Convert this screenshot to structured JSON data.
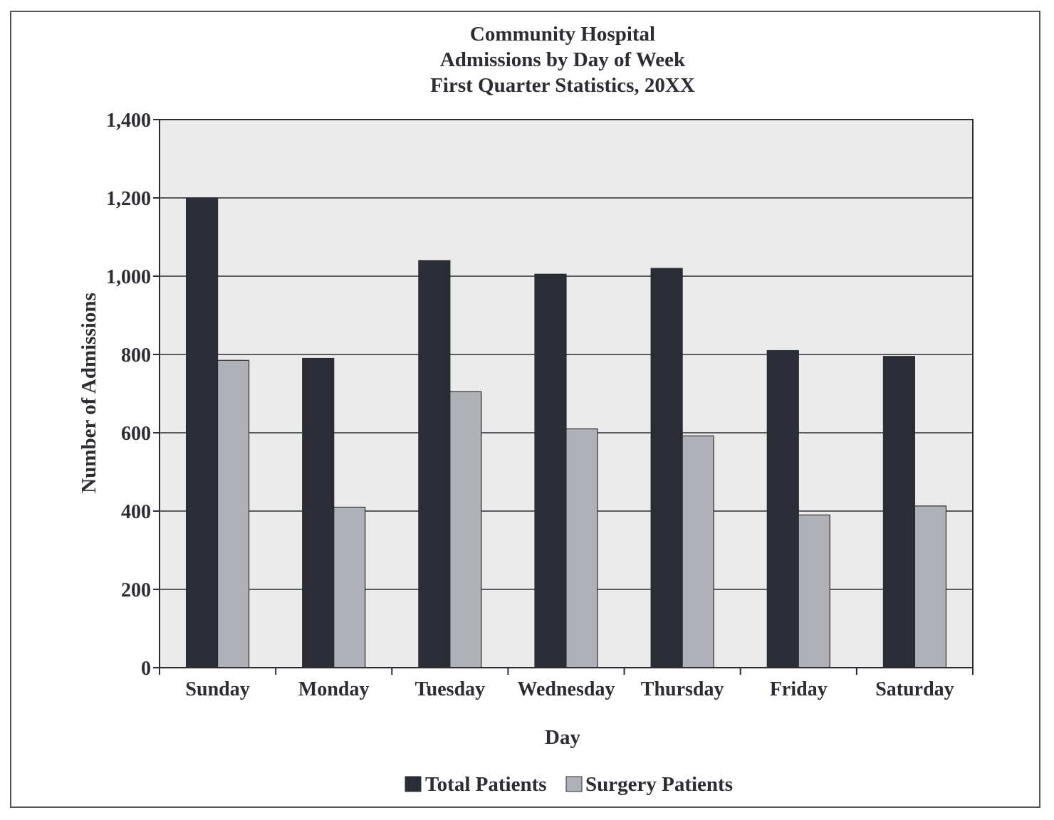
{
  "chart_data": {
    "type": "bar",
    "title": [
      "Community Hospital",
      "Admissions by Day of Week",
      "First Quarter Statistics, 20XX"
    ],
    "xlabel": "Day",
    "ylabel": "Number of Admissions",
    "categories": [
      "Sunday",
      "Monday",
      "Tuesday",
      "Wednesday",
      "Thursday",
      "Friday",
      "Saturday"
    ],
    "series": [
      {
        "name": "Total Patients",
        "color": "#2b2d36",
        "values": [
          1200,
          790,
          1040,
          1005,
          1020,
          810,
          795
        ]
      },
      {
        "name": "Surgery Patients",
        "color": "#b0b1b6",
        "values": [
          785,
          410,
          705,
          610,
          592,
          390,
          413
        ]
      }
    ],
    "ylim": [
      0,
      1400
    ],
    "yticks": [
      0,
      200,
      400,
      600,
      800,
      1000,
      1200,
      1400
    ],
    "ytick_labels": [
      "0",
      "200",
      "400",
      "600",
      "800",
      "1,000",
      "1,200",
      "1,400"
    ],
    "grid": true,
    "plot_background": "#eaebea",
    "legend_position": "bottom-center"
  }
}
